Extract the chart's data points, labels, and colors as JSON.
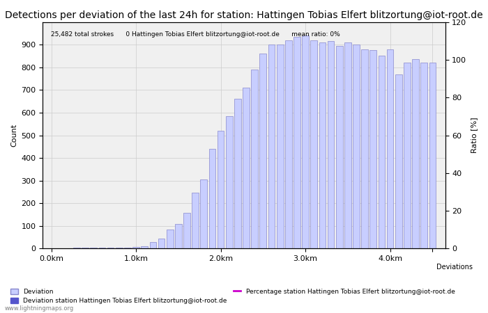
{
  "title": "Detections per deviation of the last 24h for station: Hattingen Tobias Elfert blitzortung@iot-root.de",
  "subtitle": "25,482 total strokes      0 Hattingen Tobias Elfert blitzortung@iot-root.de      mean ratio: 0%",
  "xlabel": "Deviations",
  "ylabel_left": "Count",
  "ylabel_right": "Ratio [%]",
  "ylim_left": [
    0,
    1000
  ],
  "ylim_right": [
    0,
    120
  ],
  "yticks_left": [
    0,
    100,
    200,
    300,
    400,
    500,
    600,
    700,
    800,
    900
  ],
  "yticks_right": [
    0,
    20,
    40,
    60,
    80,
    100,
    120
  ],
  "bar_width": 0.08,
  "bar_color_light": "#c8ceff",
  "bar_color_dark": "#5555cc",
  "bar_edge_color": "#8888cc",
  "watermark": "www.lightningmaps.org",
  "legend_entries": [
    {
      "label": "Deviation",
      "color": "#c8ceff",
      "type": "bar"
    },
    {
      "label": "Deviation station Hattingen Tobias Elfert blitzortung@iot-root.de",
      "color": "#5555cc",
      "type": "bar"
    },
    {
      "label": "Percentage station Hattingen Tobias Elfert blitzortung@iot-root.de",
      "color": "#cc00cc",
      "type": "line"
    }
  ],
  "bar_positions": [
    0.1,
    0.2,
    0.3,
    0.4,
    0.5,
    0.6,
    0.7,
    0.8,
    0.9,
    1.0,
    1.1,
    1.2,
    1.3,
    1.4,
    1.5,
    1.6,
    1.7,
    1.8,
    1.9,
    2.0,
    2.1,
    2.2,
    2.3,
    2.4,
    2.5,
    2.6,
    2.7,
    2.8,
    2.9,
    3.0,
    3.1,
    3.2,
    3.3,
    3.4,
    3.5,
    3.6,
    3.7,
    3.8,
    3.9,
    4.0,
    4.1,
    4.2,
    4.3,
    4.4,
    4.5
  ],
  "bar_heights": [
    2,
    2,
    3,
    3,
    4,
    4,
    5,
    5,
    6,
    7,
    10,
    30,
    45,
    85,
    110,
    158,
    248,
    305,
    440,
    520,
    585,
    660,
    710,
    790,
    860,
    900,
    900,
    920,
    935,
    940,
    920,
    910,
    915,
    895,
    910,
    900,
    880,
    875,
    850,
    880,
    770,
    820,
    835,
    820,
    820
  ],
  "xtick_positions": [
    0.0,
    1.0,
    2.0,
    3.0,
    4.0,
    4.5
  ],
  "xtick_labels": [
    "0.0km",
    "1.0km",
    "2.0km",
    "3.0km",
    "4.0km",
    ""
  ],
  "background_color": "#f0f0f0",
  "grid_color": "#cccccc",
  "title_fontsize": 10,
  "axis_fontsize": 8,
  "tick_fontsize": 8
}
